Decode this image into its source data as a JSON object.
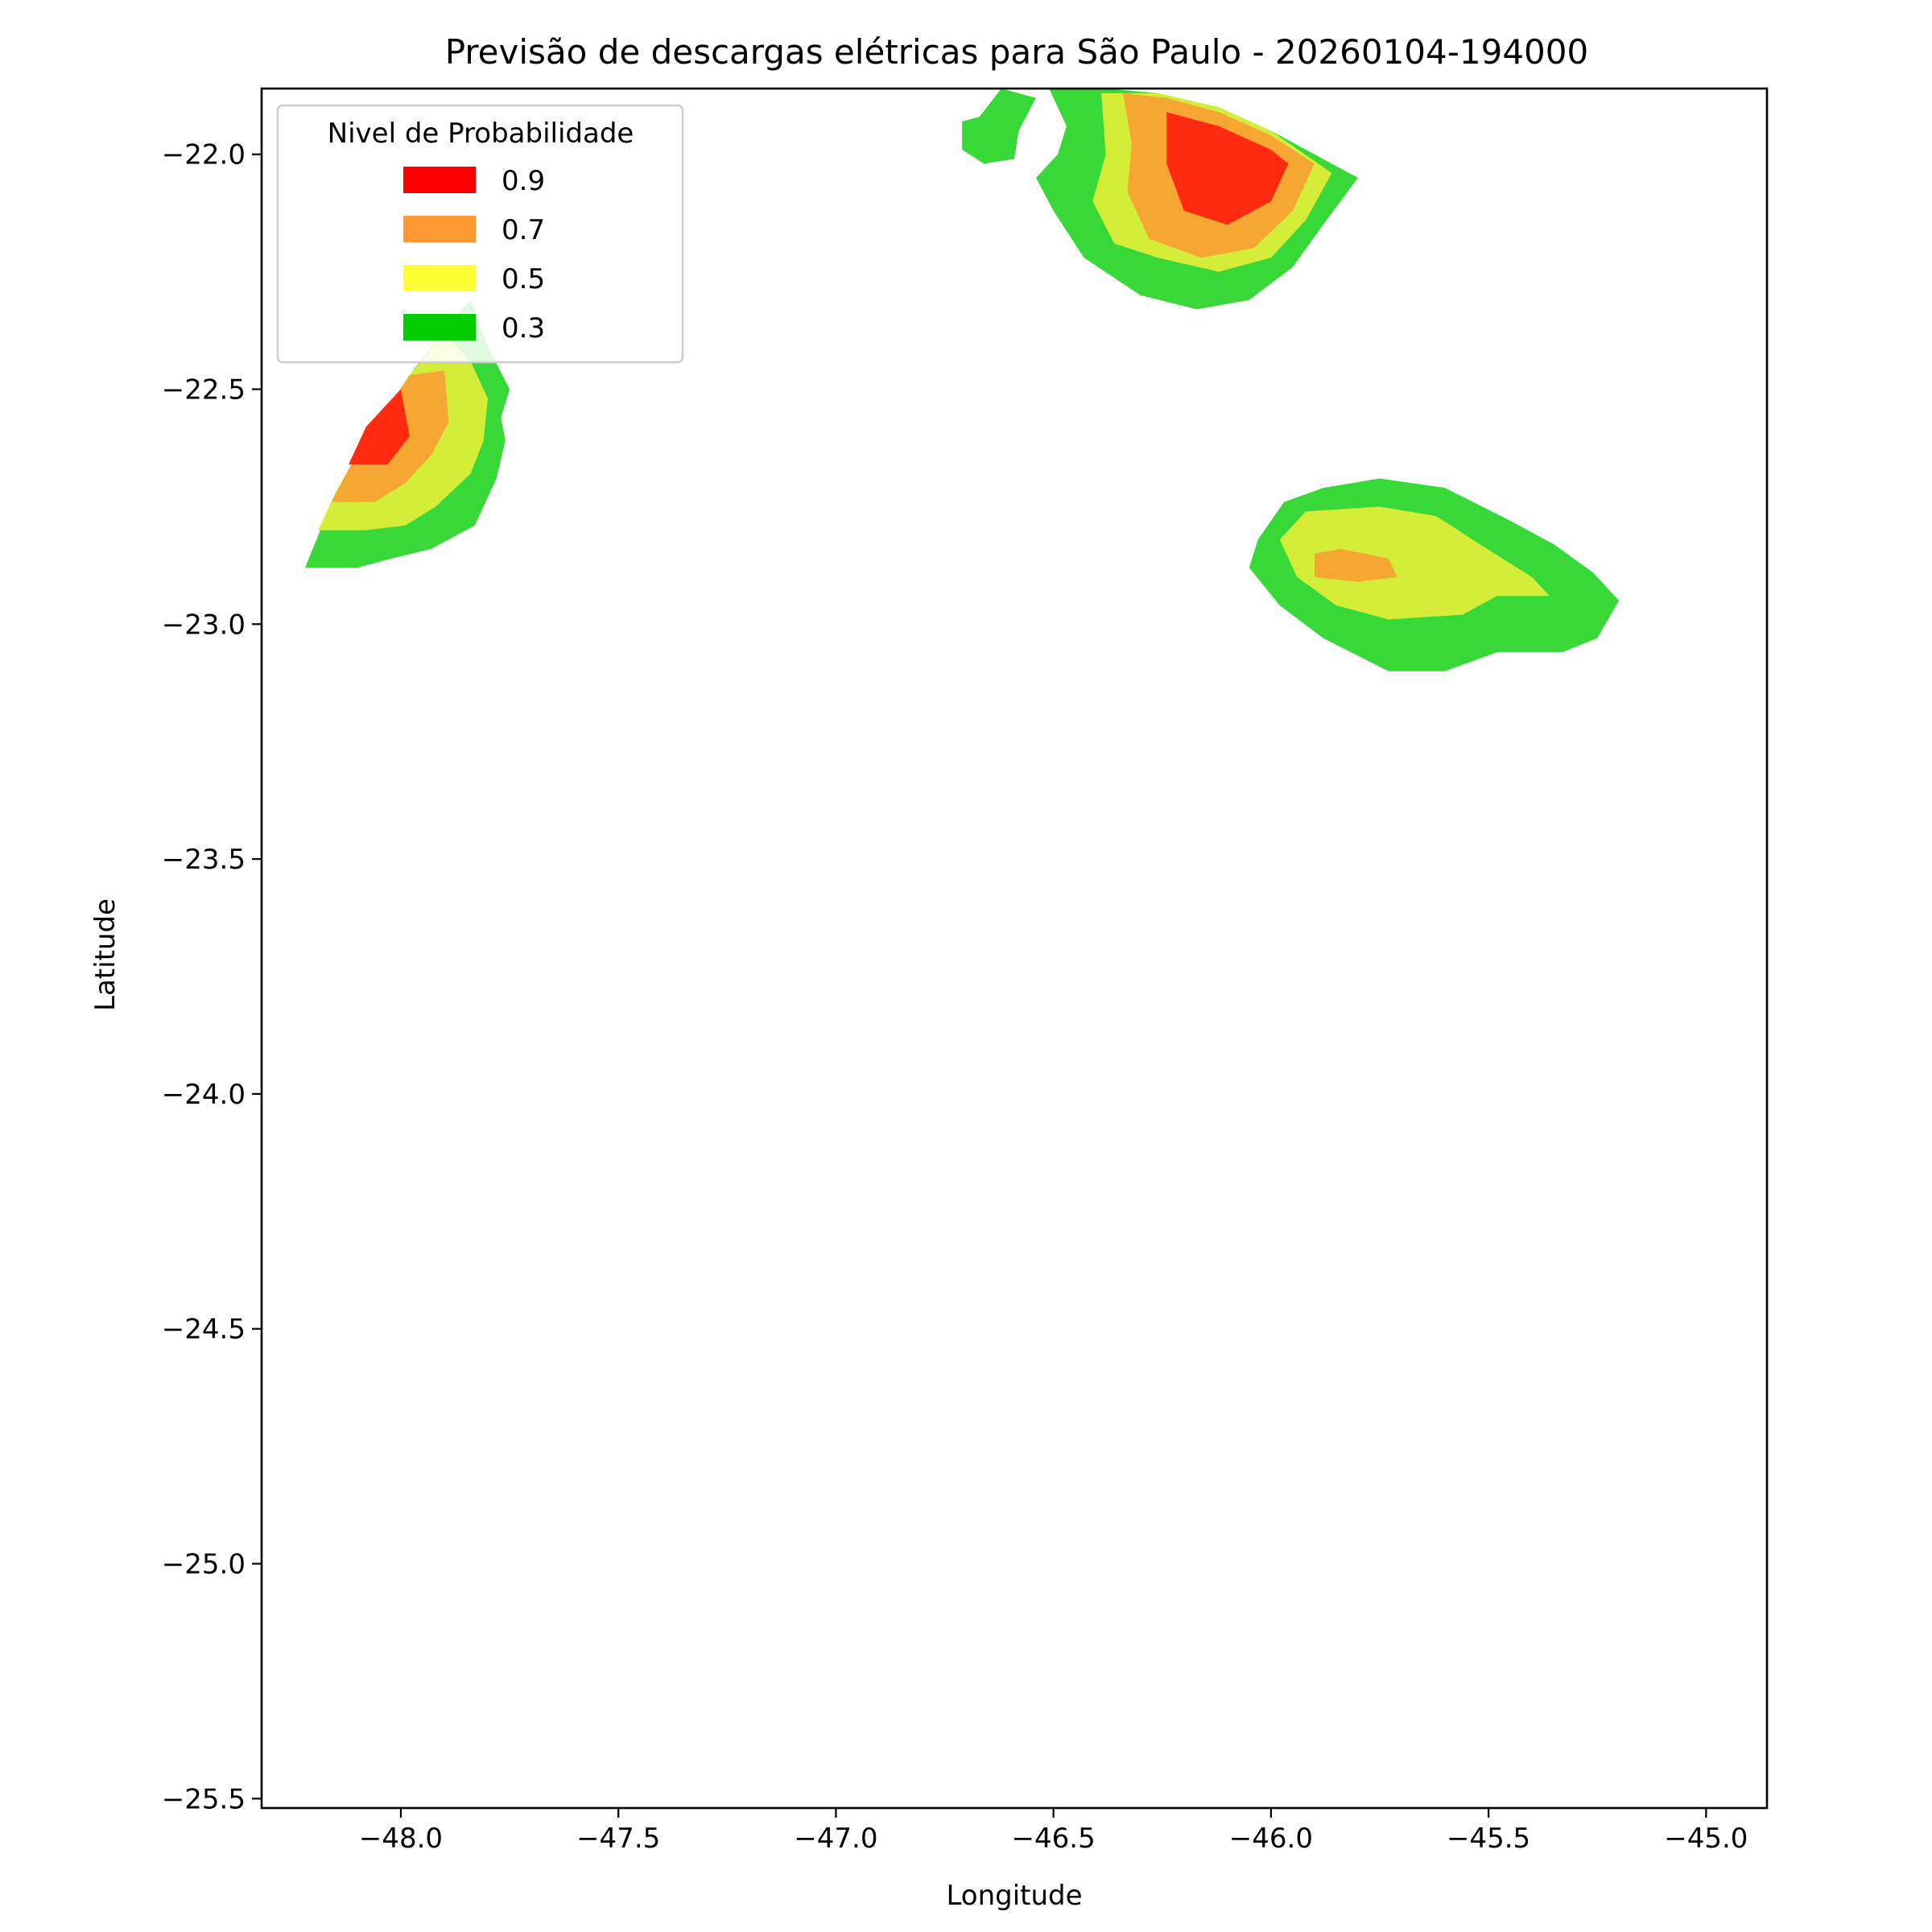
{
  "chart_data": {
    "type": "area",
    "title": "Previsão de descargas elétricas para São Paulo - 20260104-194000",
    "xlabel": "Longitude",
    "ylabel": "Latitude",
    "xlim": [
      -48.32,
      -44.86
    ],
    "ylim": [
      -25.52,
      -21.86
    ],
    "xticks": [
      -48.0,
      -47.5,
      -47.0,
      -46.5,
      -46.0,
      -45.5,
      -45.0
    ],
    "xtick_labels": [
      "−48.0",
      "−47.5",
      "−47.0",
      "−46.5",
      "−46.0",
      "−45.5",
      "−45.0"
    ],
    "yticks": [
      -22.0,
      -22.5,
      -23.0,
      -23.5,
      -24.0,
      -24.5,
      -25.0,
      -25.5
    ],
    "ytick_labels": [
      "−22.0",
      "−22.5",
      "−23.0",
      "−23.5",
      "−24.0",
      "−24.5",
      "−25.0",
      "−25.5"
    ],
    "legend": {
      "title": "Nivel de Probabilidade",
      "position": "top-left",
      "items": [
        {
          "label": "0.9",
          "color": "#ff0000"
        },
        {
          "label": "0.7",
          "color": "#ff9933"
        },
        {
          "label": "0.5",
          "color": "#ffff33"
        },
        {
          "label": "0.3",
          "color": "#00cc00"
        }
      ]
    },
    "level_colors": {
      "0.3": "#38d838",
      "0.5": "#d4ed38",
      "0.7": "#f6a633",
      "0.9": "#ff2a10"
    },
    "regions": [
      {
        "name": "northwest-cell",
        "levels": [
          {
            "level": "0.3",
            "polygon": [
              [
                -48.22,
                -22.88
              ],
              [
                -48.1,
                -22.88
              ],
              [
                -48.02,
                -22.86
              ],
              [
                -47.93,
                -22.84
              ],
              [
                -47.83,
                -22.79
              ],
              [
                -47.78,
                -22.69
              ],
              [
                -47.76,
                -22.61
              ],
              [
                -47.77,
                -22.56
              ],
              [
                -47.75,
                -22.5
              ],
              [
                -47.8,
                -22.41
              ],
              [
                -47.84,
                -22.31
              ],
              [
                -47.89,
                -22.36
              ],
              [
                -47.98,
                -22.47
              ],
              [
                -48.08,
                -22.61
              ],
              [
                -48.15,
                -22.72
              ]
            ]
          },
          {
            "level": "0.5",
            "polygon": [
              [
                -48.19,
                -22.8
              ],
              [
                -48.08,
                -22.8
              ],
              [
                -47.99,
                -22.79
              ],
              [
                -47.92,
                -22.75
              ],
              [
                -47.84,
                -22.68
              ],
              [
                -47.81,
                -22.61
              ],
              [
                -47.8,
                -22.52
              ],
              [
                -47.84,
                -22.44
              ],
              [
                -47.9,
                -22.38
              ],
              [
                -47.98,
                -22.47
              ],
              [
                -48.08,
                -22.61
              ],
              [
                -48.15,
                -22.72
              ]
            ]
          },
          {
            "level": "0.7",
            "polygon": [
              [
                -48.16,
                -22.74
              ],
              [
                -48.06,
                -22.74
              ],
              [
                -47.99,
                -22.7
              ],
              [
                -47.93,
                -22.64
              ],
              [
                -47.89,
                -22.57
              ],
              [
                -47.9,
                -22.46
              ],
              [
                -47.98,
                -22.47
              ],
              [
                -48.08,
                -22.61
              ],
              [
                -48.12,
                -22.67
              ]
            ]
          },
          {
            "level": "0.9",
            "polygon": [
              [
                -48.12,
                -22.66
              ],
              [
                -48.03,
                -22.66
              ],
              [
                -47.98,
                -22.6
              ],
              [
                -48.0,
                -22.5
              ],
              [
                -48.08,
                -22.58
              ]
            ]
          }
        ]
      },
      {
        "name": "north-cell",
        "levels": [
          {
            "level": "0.3",
            "polygon": [
              [
                -46.67,
                -21.92
              ],
              [
                -46.62,
                -21.86
              ],
              [
                -46.54,
                -21.88
              ],
              [
                -46.58,
                -21.95
              ],
              [
                -46.59,
                -22.01
              ],
              [
                -46.66,
                -22.02
              ],
              [
                -46.71,
                -21.99
              ],
              [
                -46.71,
                -21.93
              ]
            ]
          },
          {
            "level": "0.3",
            "polygon": [
              [
                -46.51,
                -21.86
              ],
              [
                -46.38,
                -21.86
              ],
              [
                -46.26,
                -21.87
              ],
              [
                -46.12,
                -21.9
              ],
              [
                -46.0,
                -21.95
              ],
              [
                -45.8,
                -22.05
              ],
              [
                -45.88,
                -22.15
              ],
              [
                -45.95,
                -22.24
              ],
              [
                -46.05,
                -22.31
              ],
              [
                -46.17,
                -22.33
              ],
              [
                -46.3,
                -22.3
              ],
              [
                -46.43,
                -22.22
              ],
              [
                -46.5,
                -22.12
              ],
              [
                -46.54,
                -22.05
              ],
              [
                -46.49,
                -22.0
              ],
              [
                -46.47,
                -21.94
              ]
            ]
          },
          {
            "level": "0.5",
            "polygon": [
              [
                -46.39,
                -21.87
              ],
              [
                -46.26,
                -21.87
              ],
              [
                -46.12,
                -21.9
              ],
              [
                -46.0,
                -21.95
              ],
              [
                -45.86,
                -22.04
              ],
              [
                -45.92,
                -22.14
              ],
              [
                -46.0,
                -22.22
              ],
              [
                -46.12,
                -22.25
              ],
              [
                -46.26,
                -22.22
              ],
              [
                -46.36,
                -22.19
              ],
              [
                -46.41,
                -22.1
              ],
              [
                -46.38,
                -22.0
              ]
            ]
          },
          {
            "level": "0.7",
            "polygon": [
              [
                -46.34,
                -21.87
              ],
              [
                -46.24,
                -21.88
              ],
              [
                -46.12,
                -21.91
              ],
              [
                -46.0,
                -21.96
              ],
              [
                -45.9,
                -22.02
              ],
              [
                -45.95,
                -22.12
              ],
              [
                -46.04,
                -22.2
              ],
              [
                -46.16,
                -22.22
              ],
              [
                -46.28,
                -22.18
              ],
              [
                -46.33,
                -22.08
              ],
              [
                -46.32,
                -21.98
              ]
            ]
          },
          {
            "level": "0.9",
            "polygon": [
              [
                -46.24,
                -21.91
              ],
              [
                -46.12,
                -21.94
              ],
              [
                -46.0,
                -21.99
              ],
              [
                -45.96,
                -22.02
              ],
              [
                -46.0,
                -22.1
              ],
              [
                -46.1,
                -22.15
              ],
              [
                -46.2,
                -22.12
              ],
              [
                -46.24,
                -22.02
              ]
            ]
          }
        ]
      },
      {
        "name": "east-cell",
        "levels": [
          {
            "level": "0.3",
            "polygon": [
              [
                -46.03,
                -22.82
              ],
              [
                -45.97,
                -22.74
              ],
              [
                -45.88,
                -22.71
              ],
              [
                -45.75,
                -22.69
              ],
              [
                -45.6,
                -22.71
              ],
              [
                -45.45,
                -22.78
              ],
              [
                -45.35,
                -22.83
              ],
              [
                -45.26,
                -22.89
              ],
              [
                -45.2,
                -22.95
              ],
              [
                -45.25,
                -23.03
              ],
              [
                -45.33,
                -23.06
              ],
              [
                -45.48,
                -23.06
              ],
              [
                -45.6,
                -23.1
              ],
              [
                -45.73,
                -23.1
              ],
              [
                -45.88,
                -23.03
              ],
              [
                -45.98,
                -22.96
              ],
              [
                -46.05,
                -22.88
              ]
            ]
          },
          {
            "level": "0.5",
            "polygon": [
              [
                -45.98,
                -22.82
              ],
              [
                -45.92,
                -22.76
              ],
              [
                -45.75,
                -22.75
              ],
              [
                -45.62,
                -22.77
              ],
              [
                -45.52,
                -22.83
              ],
              [
                -45.4,
                -22.9
              ],
              [
                -45.36,
                -22.94
              ],
              [
                -45.48,
                -22.94
              ],
              [
                -45.56,
                -22.98
              ],
              [
                -45.73,
                -22.99
              ],
              [
                -45.85,
                -22.96
              ],
              [
                -45.94,
                -22.9
              ]
            ]
          },
          {
            "level": "0.7",
            "polygon": [
              [
                -45.9,
                -22.85
              ],
              [
                -45.84,
                -22.84
              ],
              [
                -45.73,
                -22.86
              ],
              [
                -45.71,
                -22.9
              ],
              [
                -45.8,
                -22.91
              ],
              [
                -45.9,
                -22.9
              ]
            ]
          }
        ]
      }
    ]
  }
}
